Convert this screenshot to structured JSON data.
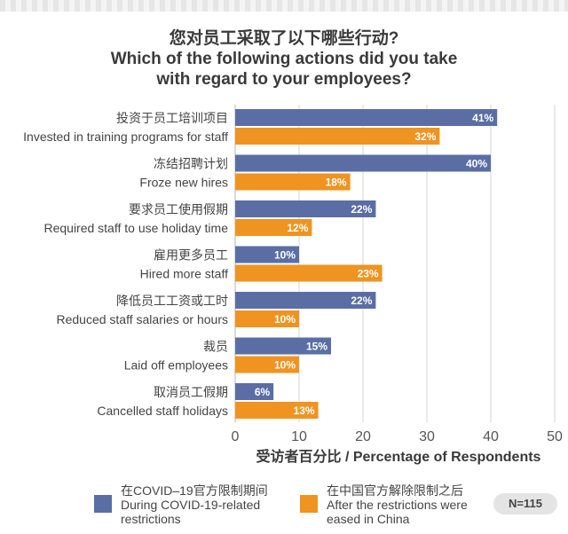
{
  "title": {
    "zh": "您对员工采取了以下哪些行动?",
    "en_line1": "Which of the following actions did you take",
    "en_line2": "with regard to your employees?"
  },
  "chart_data": {
    "type": "bar",
    "orientation": "horizontal",
    "categories": [
      {
        "zh": "投资于员工培训项目",
        "en": "Invested in training programs for staff"
      },
      {
        "zh": "冻结招聘计划",
        "en": "Froze new hires"
      },
      {
        "zh": "要求员工使用假期",
        "en": "Required staff to use holiday time"
      },
      {
        "zh": "雇用更多员工",
        "en": "Hired more staff"
      },
      {
        "zh": "降低员工工资或工时",
        "en": "Reduced staff salaries or hours"
      },
      {
        "zh": "裁员",
        "en": "Laid off employees"
      },
      {
        "zh": "取消员工假期",
        "en": "Cancelled staff holidays"
      }
    ],
    "series": [
      {
        "name": "During COVID-19-related restrictions",
        "values": [
          41,
          40,
          22,
          10,
          22,
          15,
          6
        ],
        "color": "#5a6ea5"
      },
      {
        "name": "After the restrictions were eased in China",
        "values": [
          32,
          18,
          12,
          23,
          10,
          10,
          13
        ],
        "color": "#ef9421"
      }
    ],
    "value_suffix": "%",
    "xlim": [
      0,
      50
    ],
    "xticks": [
      0,
      10,
      20,
      30,
      40,
      50
    ],
    "xlabel": "受访者百分比 / Percentage of Respondents",
    "grid": true
  },
  "legend": [
    {
      "zh": "在COVID–19官方限制期间",
      "en_line1": "During COVID-19-related",
      "en_line2": "restrictions",
      "color": "#5a6ea5"
    },
    {
      "zh": "在中国官方解除限制之后",
      "en_line1": "After the restrictions were",
      "en_line2": "eased in China",
      "color": "#ef9421"
    }
  ],
  "sample_badge": "N=115"
}
